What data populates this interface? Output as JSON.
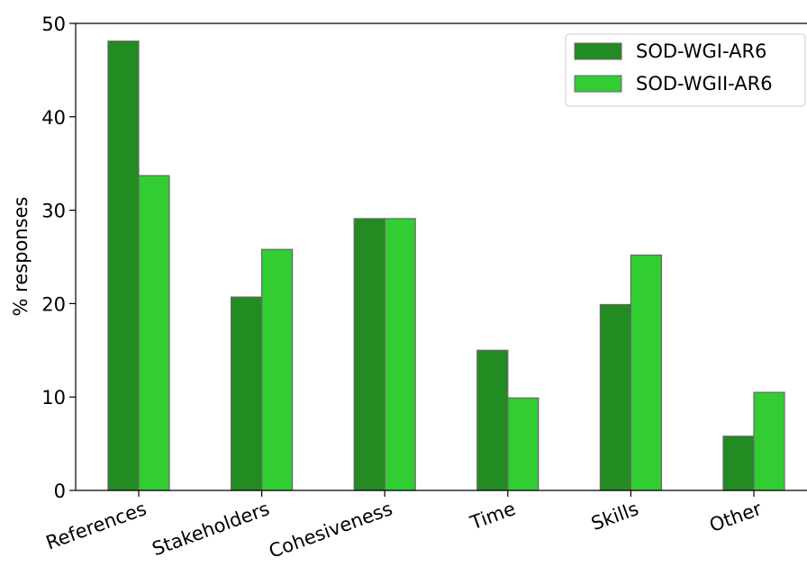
{
  "chart_data": {
    "type": "bar",
    "title": "",
    "xlabel": "",
    "ylabel": "% responses",
    "ylim": [
      0,
      50
    ],
    "yticks": [
      0,
      10,
      20,
      30,
      40,
      50
    ],
    "grid": false,
    "legend_position": "top-right",
    "categories": [
      "References",
      "Stakeholders",
      "Cohesiveness",
      "Time",
      "Skills",
      "Other"
    ],
    "series": [
      {
        "name": "SOD-WGI-AR6",
        "color": "#228B22",
        "values": [
          48.1,
          20.7,
          29.1,
          15.0,
          19.9,
          5.8
        ]
      },
      {
        "name": "SOD-WGII-AR6",
        "color": "#32CD32",
        "values": [
          33.7,
          25.8,
          29.1,
          9.9,
          25.2,
          10.5
        ]
      }
    ]
  }
}
